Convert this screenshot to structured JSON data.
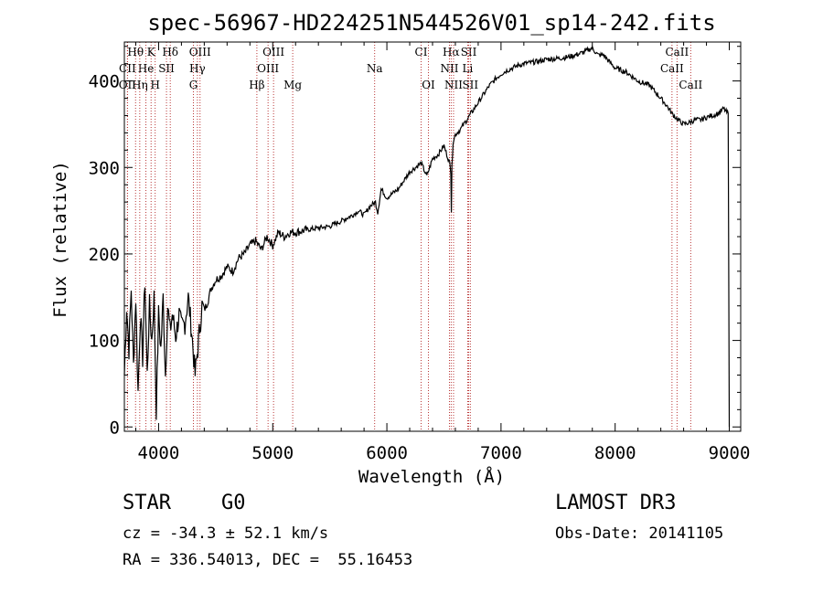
{
  "chart_data": {
    "type": "line",
    "title": "spec-56967-HD224251N544526V01_sp14-242.fits",
    "xlabel": "Wavelength (Å)",
    "ylabel": "Flux (relative)",
    "xlim": [
      3700,
      9100
    ],
    "ylim": [
      -5,
      445
    ],
    "xticks": [
      4000,
      5000,
      6000,
      7000,
      8000,
      9000
    ],
    "yticks": [
      0,
      100,
      200,
      300,
      400
    ],
    "series": [
      {
        "name": "flux",
        "x": [
          3700,
          3720,
          3740,
          3760,
          3780,
          3800,
          3820,
          3840,
          3860,
          3880,
          3900,
          3920,
          3940,
          3960,
          3980,
          4000,
          4020,
          4040,
          4060,
          4080,
          4100,
          4120,
          4150,
          4180,
          4200,
          4230,
          4260,
          4290,
          4320,
          4350,
          4380,
          4400,
          4430,
          4460,
          4500,
          4550,
          4600,
          4650,
          4700,
          4750,
          4800,
          4850,
          4900,
          4950,
          5000,
          5050,
          5100,
          5150,
          5200,
          5300,
          5400,
          5500,
          5600,
          5700,
          5750,
          5800,
          5850,
          5900,
          5920,
          5950,
          6000,
          6050,
          6100,
          6150,
          6200,
          6250,
          6300,
          6350,
          6400,
          6450,
          6500,
          6550,
          6560,
          6565,
          6570,
          6580,
          6600,
          6650,
          6700,
          6750,
          6800,
          6850,
          6900,
          6950,
          7000,
          7050,
          7100,
          7150,
          7200,
          7300,
          7400,
          7500,
          7600,
          7700,
          7800,
          7850,
          7900,
          7950,
          8000,
          8100,
          8200,
          8300,
          8400,
          8450,
          8500,
          8550,
          8600,
          8650,
          8700,
          8750,
          8800,
          8850,
          8900,
          8950,
          8990,
          9000
        ],
        "values": [
          60,
          140,
          90,
          160,
          70,
          150,
          40,
          130,
          80,
          170,
          60,
          140,
          100,
          150,
          20,
          130,
          90,
          150,
          60,
          140,
          110,
          130,
          105,
          130,
          115,
          120,
          150,
          110,
          60,
          100,
          140,
          135,
          145,
          160,
          170,
          175,
          185,
          180,
          195,
          200,
          210,
          215,
          205,
          220,
          210,
          225,
          220,
          225,
          225,
          228,
          230,
          232,
          238,
          245,
          250,
          245,
          255,
          260,
          248,
          275,
          265,
          270,
          275,
          285,
          295,
          300,
          305,
          290,
          310,
          315,
          325,
          305,
          295,
          250,
          300,
          330,
          338,
          345,
          355,
          365,
          375,
          385,
          395,
          402,
          408,
          412,
          415,
          418,
          420,
          422,
          425,
          426,
          428,
          432,
          438,
          430,
          430,
          422,
          415,
          410,
          400,
          395,
          380,
          372,
          362,
          355,
          350,
          352,
          355,
          355,
          358,
          360,
          362,
          368,
          362,
          0
        ]
      }
    ],
    "spectral_lines": [
      {
        "label": "Hθ",
        "x": 3798,
        "row": 0
      },
      {
        "label": "K",
        "x": 3934,
        "row": 0
      },
      {
        "label": "Hδ",
        "x": 4102,
        "row": 0
      },
      {
        "label": "OIII",
        "x": 4363,
        "row": 0
      },
      {
        "label": "OIII",
        "x": 5007,
        "row": 0
      },
      {
        "label": "CI",
        "x": 6300,
        "row": 0
      },
      {
        "label": "Hα",
        "x": 6563,
        "row": 0
      },
      {
        "label": "SII",
        "x": 6717,
        "row": 0
      },
      {
        "label": "CaII",
        "x": 8542,
        "row": 0
      },
      {
        "label": "CII",
        "x": 3727,
        "row": 1
      },
      {
        "label": "He",
        "x": 3889,
        "row": 1
      },
      {
        "label": "SII",
        "x": 4069,
        "row": 1
      },
      {
        "label": "Hγ",
        "x": 4340,
        "row": 1
      },
      {
        "label": "OIII",
        "x": 4959,
        "row": 1
      },
      {
        "label": "Na",
        "x": 5893,
        "row": 1
      },
      {
        "label": "NII",
        "x": 6548,
        "row": 1
      },
      {
        "label": "Li",
        "x": 6708,
        "row": 1
      },
      {
        "label": "CaII",
        "x": 8498,
        "row": 1
      },
      {
        "label": "OII",
        "x": 3727,
        "row": 2
      },
      {
        "label": "Hη",
        "x": 3835,
        "row": 2
      },
      {
        "label": "H",
        "x": 3970,
        "row": 2
      },
      {
        "label": "G",
        "x": 4305,
        "row": 2
      },
      {
        "label": "Hβ",
        "x": 4861,
        "row": 2
      },
      {
        "label": "Mg",
        "x": 5175,
        "row": 2
      },
      {
        "label": "OI",
        "x": 6364,
        "row": 2
      },
      {
        "label": "NII",
        "x": 6584,
        "row": 2
      },
      {
        "label": "SII",
        "x": 6731,
        "row": 2
      },
      {
        "label": "CaII",
        "x": 8662,
        "row": 2
      }
    ]
  },
  "info": {
    "object_class": "STAR",
    "subclass": "G0",
    "survey": "LAMOST DR3",
    "cz": "cz = -34.3 ± 52.1 km/s",
    "obs_date": "Obs-Date: 20141105",
    "coords": "RA = 336.54013, DEC =  55.16453"
  }
}
